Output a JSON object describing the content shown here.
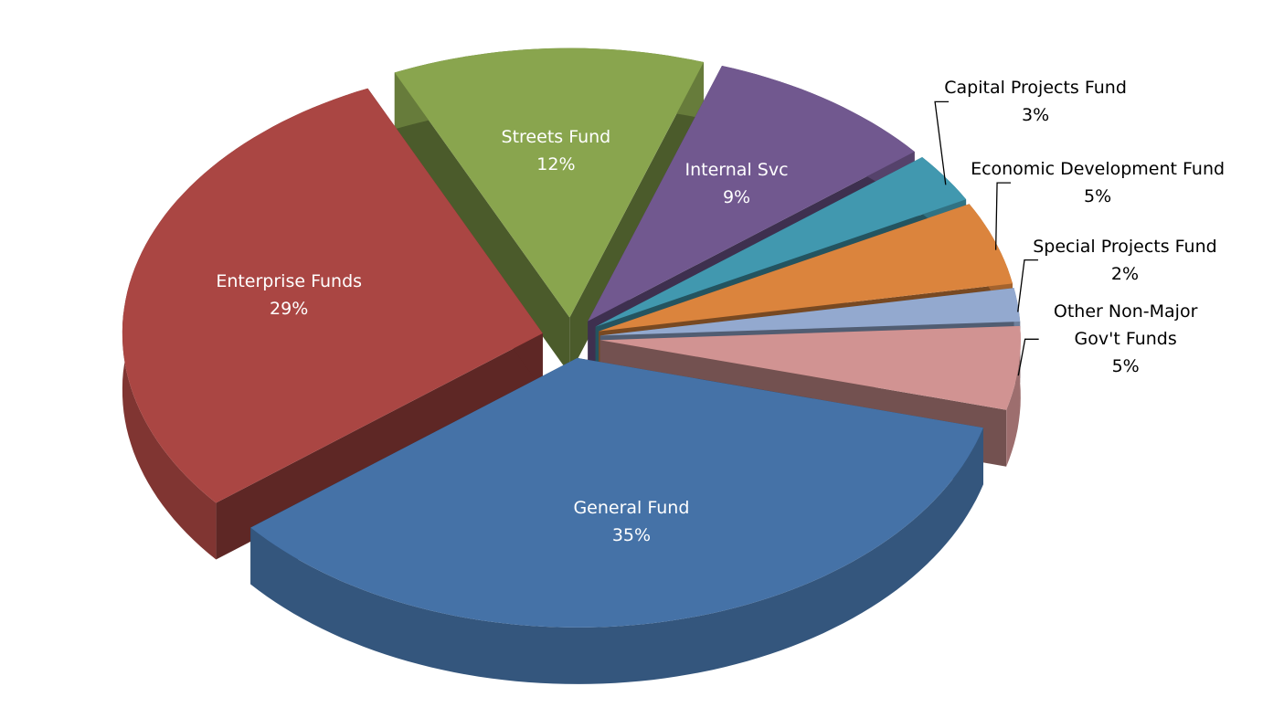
{
  "chart_data": {
    "type": "pie",
    "categories": [
      "General Fund",
      "Enterprise Funds",
      "Streets Fund",
      "Internal Svc",
      "Capital Projects Fund",
      "Economic Development Fund",
      "Special Projects Fund",
      "Other Non-Major Gov't Funds"
    ],
    "values": [
      35,
      29,
      12,
      9,
      3,
      5,
      2,
      5
    ],
    "value_labels": [
      "35%",
      "29%",
      "12%",
      "9%",
      "3%",
      "5%",
      "2%",
      "5%"
    ],
    "colors": [
      "#4572a7",
      "#aa4643",
      "#89a54e",
      "#71588f",
      "#4198af",
      "#db843d",
      "#93a9cf",
      "#d19392"
    ]
  }
}
